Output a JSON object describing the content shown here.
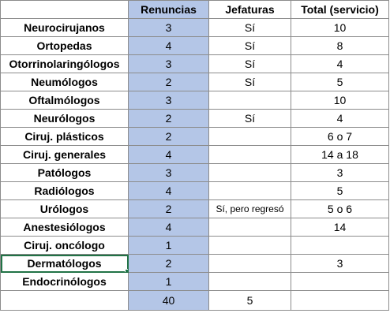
{
  "header": {
    "col_a": "",
    "col_b": "Renuncias",
    "col_c": "Jefaturas",
    "col_d": "Total (servicio)"
  },
  "rows": [
    {
      "name": "Neurocirujanos",
      "renuncias": "3",
      "jefaturas": "Sí",
      "total": "10"
    },
    {
      "name": "Ortopedas",
      "renuncias": "4",
      "jefaturas": "Sí",
      "total": "8"
    },
    {
      "name": "Otorrinolaringólogos",
      "renuncias": "3",
      "jefaturas": "Sí",
      "total": "4"
    },
    {
      "name": "Neumólogos",
      "renuncias": "2",
      "jefaturas": "Sí",
      "total": "5"
    },
    {
      "name": "Oftalmólogos",
      "renuncias": "3",
      "jefaturas": "",
      "total": "10"
    },
    {
      "name": "Neurólogos",
      "renuncias": "2",
      "jefaturas": "Sí",
      "total": "4"
    },
    {
      "name": "Ciruj. plásticos",
      "renuncias": "2",
      "jefaturas": "",
      "total": "6 o 7"
    },
    {
      "name": "Ciruj. generales",
      "renuncias": "4",
      "jefaturas": "",
      "total": "14 a 18"
    },
    {
      "name": "Patólogos",
      "renuncias": "3",
      "jefaturas": "",
      "total": "3"
    },
    {
      "name": "Radiólogos",
      "renuncias": "4",
      "jefaturas": "",
      "total": "5"
    },
    {
      "name": "Urólogos",
      "renuncias": "2",
      "jefaturas": "Sí, pero regresó",
      "total": "5 o 6"
    },
    {
      "name": "Anestesiólogos",
      "renuncias": "4",
      "jefaturas": "",
      "total": "14"
    },
    {
      "name": "Ciruj. oncólogo",
      "renuncias": "1",
      "jefaturas": "",
      "total": ""
    },
    {
      "name": "Dermatólogos",
      "renuncias": "2",
      "jefaturas": "",
      "total": "3"
    },
    {
      "name": "Endocrinólogos",
      "renuncias": "1",
      "jefaturas": "",
      "total": ""
    }
  ],
  "totals": {
    "name": "",
    "renuncias": "40",
    "jefaturas": "5",
    "total": ""
  },
  "colors": {
    "renuncias_fill": "#b4c6e7",
    "selection": "#217346",
    "gridline": "#8c8c8c"
  }
}
